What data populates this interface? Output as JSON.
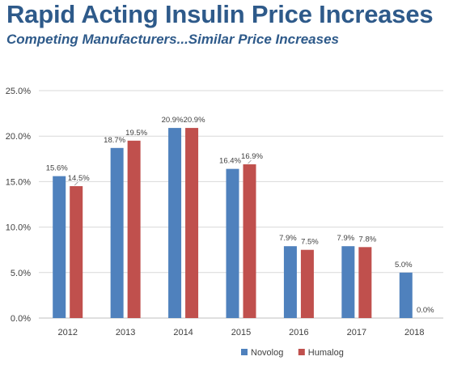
{
  "header": {
    "title": "Rapid Acting Insulin Price Increases",
    "subtitle": "Competing Manufacturers...Similar Price Increases"
  },
  "chart_data": {
    "type": "bar",
    "title": "Rapid Acting Insulin Price Increases",
    "subtitle": "Competing Manufacturers...Similar Price Increases",
    "categories": [
      "2012",
      "2013",
      "2014",
      "2015",
      "2016",
      "2017",
      "2018"
    ],
    "series": [
      {
        "name": "Novolog",
        "color": "#4f81bd",
        "values": [
          15.6,
          18.7,
          20.9,
          16.4,
          7.9,
          7.9,
          5.0
        ],
        "labels": [
          "15.6%",
          "18.7%",
          "20.9%",
          "16.4%",
          "7.9%",
          "7.9%",
          "5.0%"
        ]
      },
      {
        "name": "Humalog",
        "color": "#c0504d",
        "values": [
          14.5,
          19.5,
          20.9,
          16.9,
          7.5,
          7.8,
          0.0
        ],
        "labels": [
          "14.5%",
          "19.5%",
          "20.9%",
          "16.9%",
          "7.5%",
          "7.8%",
          "0.0%"
        ]
      }
    ],
    "ylim": [
      0,
      25
    ],
    "yticks": [
      "0.0%",
      "5.0%",
      "10.0%",
      "15.0%",
      "20.0%",
      "25.0%"
    ],
    "ytick_values": [
      0,
      5,
      10,
      15,
      20,
      25
    ],
    "xlabel": "",
    "ylabel": "",
    "grid": true,
    "legend": "bottom"
  }
}
